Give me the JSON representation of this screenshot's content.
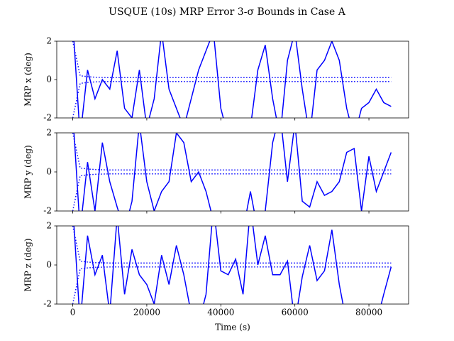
{
  "chart_data": [
    {
      "type": "line",
      "title": "USQUE (10s) MRP Error 3-σ Bounds in Case A",
      "ylabel": "MRP x (deg)",
      "x": [
        0,
        2000,
        4000,
        6000,
        8000,
        10000,
        12000,
        14000,
        16000,
        18000,
        20000,
        22000,
        24000,
        26000,
        28000,
        30000,
        32000,
        34000,
        36000,
        38000,
        40000,
        42000,
        44000,
        46000,
        48000,
        50000,
        52000,
        54000,
        56000,
        58000,
        60000,
        62000,
        64000,
        66000,
        68000,
        70000,
        72000,
        74000,
        76000,
        78000,
        80000,
        82000,
        84000,
        86000
      ],
      "series": [
        {
          "color": "#0000ff",
          "linestyle": "solid",
          "values": [
            3,
            -3,
            0.5,
            -1,
            0,
            -0.5,
            1.5,
            -1.5,
            -2,
            0.5,
            -2.5,
            -1,
            2.5,
            -0.5,
            -1.5,
            -2.5,
            -1,
            0.5,
            1.5,
            2.5,
            -1.5,
            -3,
            -3,
            -3,
            -2.5,
            0.5,
            1.8,
            -1,
            -3,
            1,
            2.5,
            -0.5,
            -3,
            0.5,
            1,
            2,
            1,
            -1.5,
            -3,
            -1.5,
            -1.2,
            -0.5,
            -1.2,
            -1.4
          ]
        },
        {
          "color": "#0000ff",
          "linestyle": "dotted",
          "values": [
            2,
            0.2,
            0.15,
            0.12,
            0.11,
            0.1,
            0.1,
            0.1,
            0.1,
            0.1,
            0.1,
            0.1,
            0.1,
            0.1,
            0.1,
            0.1,
            0.1,
            0.1,
            0.1,
            0.1,
            0.1,
            0.1,
            0.1,
            0.1,
            0.1,
            0.1,
            0.1,
            0.1,
            0.1,
            0.1,
            0.1,
            0.1,
            0.1,
            0.1,
            0.1,
            0.1,
            0.1,
            0.1,
            0.1,
            0.1,
            0.1,
            0.1,
            0.1,
            0.1
          ]
        },
        {
          "color": "#0000ff",
          "linestyle": "dotted",
          "values": [
            -2,
            -0.2,
            -0.15,
            -0.12,
            -0.11,
            -0.1,
            -0.1,
            -0.1,
            -0.1,
            -0.1,
            -0.1,
            -0.1,
            -0.1,
            -0.1,
            -0.1,
            -0.1,
            -0.1,
            -0.1,
            -0.1,
            -0.1,
            -0.1,
            -0.1,
            -0.1,
            -0.1,
            -0.1,
            -0.1,
            -0.1,
            -0.1,
            -0.1,
            -0.1,
            -0.1,
            -0.1,
            -0.1,
            -0.1,
            -0.1,
            -0.1,
            -0.1,
            -0.1,
            -0.1,
            -0.1,
            -0.1,
            -0.1,
            -0.1,
            -0.1
          ]
        }
      ],
      "xlim": [
        -4320,
        90720
      ],
      "ylim": [
        -2,
        2
      ],
      "yticks": [
        -2,
        0,
        2
      ]
    },
    {
      "type": "line",
      "ylabel": "MRP y (deg)",
      "x": [
        0,
        2000,
        4000,
        6000,
        8000,
        10000,
        12000,
        14000,
        16000,
        18000,
        20000,
        22000,
        24000,
        26000,
        28000,
        30000,
        32000,
        34000,
        36000,
        38000,
        40000,
        42000,
        44000,
        46000,
        48000,
        50000,
        52000,
        54000,
        56000,
        58000,
        60000,
        62000,
        64000,
        66000,
        68000,
        70000,
        72000,
        74000,
        76000,
        78000,
        80000,
        82000,
        84000,
        86000
      ],
      "series": [
        {
          "color": "#0000ff",
          "linestyle": "solid",
          "values": [
            3,
            -3,
            0.5,
            -2,
            1.5,
            -0.5,
            -1.8,
            -3,
            -1.5,
            2.5,
            -0.5,
            -2,
            -1,
            -0.5,
            2,
            1.5,
            -0.5,
            0,
            -1,
            -2.5,
            -3,
            -3,
            -3,
            -3,
            -1,
            -3,
            -2,
            1.5,
            3,
            -0.5,
            2.5,
            -1.5,
            -1.8,
            -0.5,
            -1.2,
            -1,
            -0.5,
            1,
            1.2,
            -2,
            0.8,
            -1,
            0,
            1
          ]
        },
        {
          "color": "#0000ff",
          "linestyle": "dotted",
          "values": [
            2,
            0.2,
            0.15,
            0.12,
            0.11,
            0.1,
            0.1,
            0.1,
            0.1,
            0.1,
            0.1,
            0.1,
            0.1,
            0.1,
            0.1,
            0.1,
            0.1,
            0.1,
            0.1,
            0.1,
            0.1,
            0.1,
            0.1,
            0.1,
            0.1,
            0.1,
            0.1,
            0.1,
            0.1,
            0.1,
            0.1,
            0.1,
            0.1,
            0.1,
            0.1,
            0.1,
            0.1,
            0.1,
            0.1,
            0.1,
            0.1,
            0.1,
            0.1,
            0.1
          ]
        },
        {
          "color": "#0000ff",
          "linestyle": "dotted",
          "values": [
            -2,
            -0.2,
            -0.15,
            -0.12,
            -0.11,
            -0.1,
            -0.1,
            -0.1,
            -0.1,
            -0.1,
            -0.1,
            -0.1,
            -0.1,
            -0.1,
            -0.1,
            -0.1,
            -0.1,
            -0.1,
            -0.1,
            -0.1,
            -0.1,
            -0.1,
            -0.1,
            -0.1,
            -0.1,
            -0.1,
            -0.1,
            -0.1,
            -0.1,
            -0.1,
            -0.1,
            -0.1,
            -0.1,
            -0.1,
            -0.1,
            -0.1,
            -0.1,
            -0.1,
            -0.1,
            -0.1,
            -0.1,
            -0.1,
            -0.1,
            -0.1
          ]
        }
      ],
      "xlim": [
        -4320,
        90720
      ],
      "ylim": [
        -2,
        2
      ],
      "yticks": [
        -2,
        0,
        2
      ]
    },
    {
      "type": "line",
      "ylabel": "MRP z (deg)",
      "xlabel": "Time (s)",
      "x": [
        0,
        2000,
        4000,
        6000,
        8000,
        10000,
        12000,
        14000,
        16000,
        18000,
        20000,
        22000,
        24000,
        26000,
        28000,
        30000,
        32000,
        34000,
        36000,
        38000,
        40000,
        42000,
        44000,
        46000,
        48000,
        50000,
        52000,
        54000,
        56000,
        58000,
        60000,
        62000,
        64000,
        66000,
        68000,
        70000,
        72000,
        74000,
        76000,
        78000,
        80000,
        82000,
        84000,
        86000
      ],
      "series": [
        {
          "color": "#0000ff",
          "linestyle": "solid",
          "values": [
            3,
            -3,
            1.5,
            -0.5,
            0.5,
            -2.5,
            2.5,
            -1.5,
            0.8,
            -0.5,
            -1,
            -2,
            0.5,
            -1,
            1,
            -0.5,
            -2.5,
            -3,
            -1.5,
            3,
            -0.3,
            -0.5,
            0.3,
            -1.5,
            3,
            0,
            1.5,
            -0.5,
            -0.5,
            0.2,
            -3,
            -0.6,
            1,
            -0.8,
            -0.3,
            1.8,
            -1,
            -3,
            -3,
            -3,
            -3,
            -3,
            -1.5,
            -0.1
          ]
        },
        {
          "color": "#0000ff",
          "linestyle": "dotted",
          "values": [
            2,
            0.2,
            0.15,
            0.12,
            0.11,
            0.1,
            0.1,
            0.1,
            0.1,
            0.1,
            0.1,
            0.1,
            0.1,
            0.1,
            0.1,
            0.1,
            0.1,
            0.1,
            0.1,
            0.1,
            0.1,
            0.1,
            0.1,
            0.1,
            0.1,
            0.1,
            0.1,
            0.1,
            0.1,
            0.1,
            0.1,
            0.1,
            0.1,
            0.1,
            0.1,
            0.1,
            0.1,
            0.1,
            0.1,
            0.1,
            0.1,
            0.1,
            0.1,
            0.1
          ]
        },
        {
          "color": "#0000ff",
          "linestyle": "dotted",
          "values": [
            -2,
            -0.2,
            -0.15,
            -0.12,
            -0.11,
            -0.1,
            -0.1,
            -0.1,
            -0.1,
            -0.1,
            -0.1,
            -0.1,
            -0.1,
            -0.1,
            -0.1,
            -0.1,
            -0.1,
            -0.1,
            -0.1,
            -0.1,
            -0.1,
            -0.1,
            -0.1,
            -0.1,
            -0.1,
            -0.1,
            -0.1,
            -0.1,
            -0.1,
            -0.1,
            -0.1,
            -0.1,
            -0.1,
            -0.1,
            -0.1,
            -0.1,
            -0.1,
            -0.1,
            -0.1,
            -0.1,
            -0.1,
            -0.1,
            -0.1,
            -0.1
          ]
        }
      ],
      "xlim": [
        -4320,
        90720
      ],
      "ylim": [
        -2,
        2
      ],
      "yticks": [
        -2,
        0,
        2
      ],
      "xticks": [
        0,
        20000,
        40000,
        60000,
        80000
      ]
    }
  ]
}
